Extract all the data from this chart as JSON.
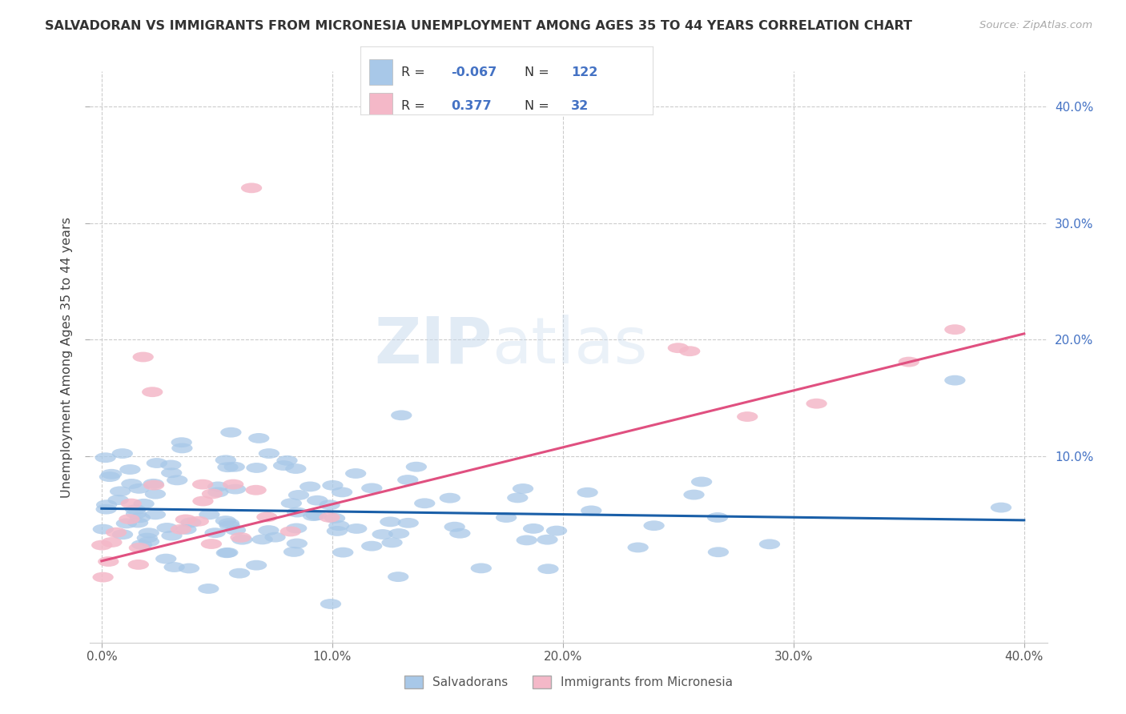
{
  "title": "SALVADORAN VS IMMIGRANTS FROM MICRONESIA UNEMPLOYMENT AMONG AGES 35 TO 44 YEARS CORRELATION CHART",
  "source": "Source: ZipAtlas.com",
  "ylabel": "Unemployment Among Ages 35 to 44 years",
  "xlim": [
    -0.005,
    0.41
  ],
  "ylim": [
    -0.06,
    0.43
  ],
  "xtick_labels": [
    "0.0%",
    "10.0%",
    "20.0%",
    "30.0%",
    "40.0%"
  ],
  "xtick_vals": [
    0.0,
    0.1,
    0.2,
    0.3,
    0.4
  ],
  "ytick_labels": [
    "10.0%",
    "20.0%",
    "30.0%",
    "40.0%"
  ],
  "ytick_vals": [
    0.1,
    0.2,
    0.3,
    0.4
  ],
  "blue_scatter_color": "#a8c8e8",
  "pink_scatter_color": "#f4b8c8",
  "blue_line_color": "#1a5fa8",
  "pink_line_color": "#e05080",
  "legend_R_blue": "-0.067",
  "legend_N_blue": "122",
  "legend_R_pink": "0.377",
  "legend_N_pink": "32",
  "legend_label_blue": "Salvadorans",
  "legend_label_pink": "Immigrants from Micronesia",
  "watermark_zip": "ZIP",
  "watermark_atlas": "atlas",
  "background_color": "#ffffff",
  "grid_color": "#cccccc",
  "blue_trend_x0": 0.0,
  "blue_trend_y0": 0.055,
  "blue_trend_x1": 0.4,
  "blue_trend_y1": 0.045,
  "pink_trend_x0": 0.0,
  "pink_trend_y0": 0.01,
  "pink_trend_x1": 0.4,
  "pink_trend_y1": 0.205
}
